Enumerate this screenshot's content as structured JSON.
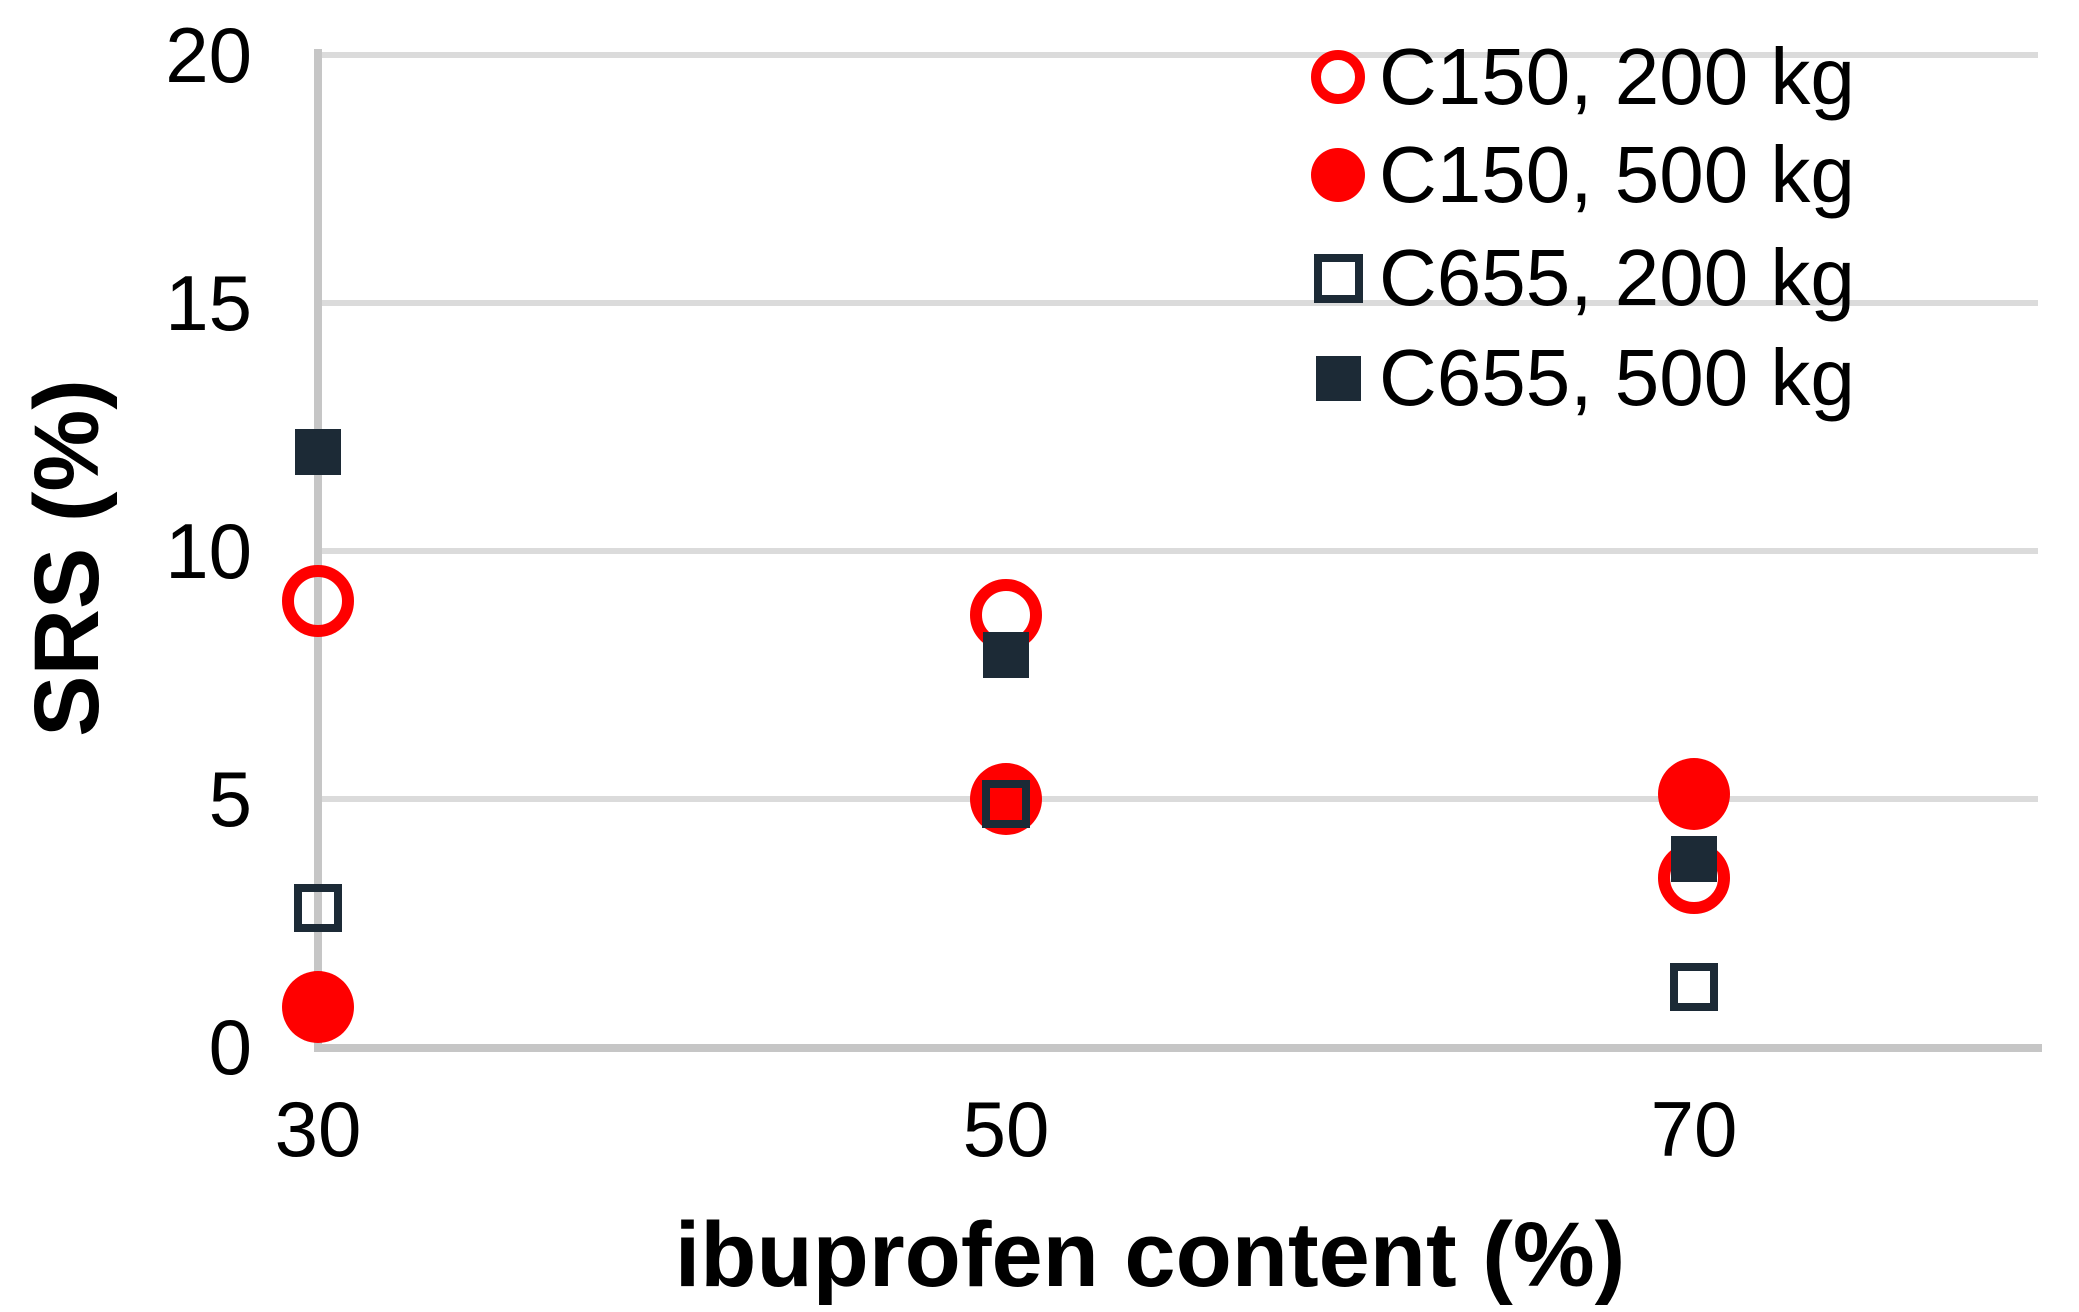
{
  "chart_data": {
    "type": "scatter",
    "title": "",
    "xlabel": "ibuprofen content (%)",
    "ylabel": "SRS (%)",
    "x": [
      30,
      50,
      70
    ],
    "xlim": [
      30,
      80
    ],
    "ylim": [
      0,
      20
    ],
    "yticks": [
      0,
      5,
      10,
      15,
      20
    ],
    "xticks": [
      30,
      50,
      70
    ],
    "grid": true,
    "legend_position": "top-right",
    "series": [
      {
        "name": "C150, 200 kg",
        "marker": "open-circle",
        "color": "#FF0000",
        "values": [
          9.0,
          8.7,
          3.4
        ]
      },
      {
        "name": "C150, 500 kg",
        "marker": "filled-circle",
        "color": "#FF0000",
        "values": [
          0.8,
          5.0,
          5.1
        ]
      },
      {
        "name": "C655, 200 kg",
        "marker": "open-square",
        "color": "#1C2A36",
        "values": [
          2.8,
          4.9,
          1.2
        ]
      },
      {
        "name": "C655, 500 kg",
        "marker": "filled-square",
        "color": "#1C2A36",
        "values": [
          12.0,
          7.9,
          3.8
        ]
      }
    ],
    "colors": {
      "red": "#FF0000",
      "dark": "#1C2A36",
      "gridline": "#DBDBDB",
      "axis": "#C6C6C6"
    }
  }
}
